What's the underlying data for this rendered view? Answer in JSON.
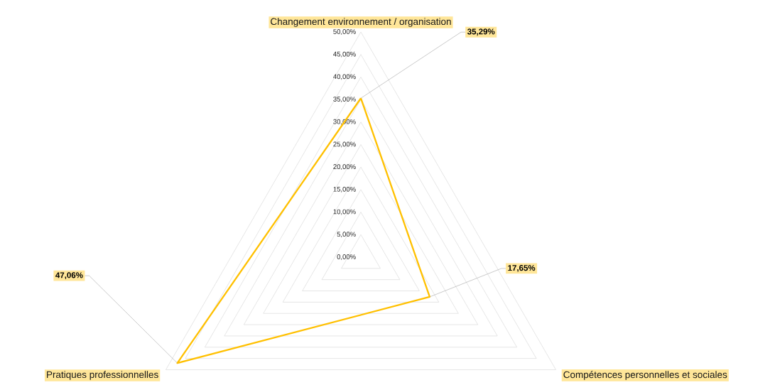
{
  "chart_data": {
    "type": "radar",
    "categories": [
      "Changement environnement / organisation",
      "Compétences personnelles et sociales",
      "Pratiques professionnelles"
    ],
    "series": [
      {
        "color": "#ffc000",
        "values": [
          35.29,
          17.65,
          47.06
        ],
        "value_labels": [
          "35,29%",
          "17,65%",
          "47,06%"
        ]
      }
    ],
    "ylim": [
      0,
      50
    ],
    "yticks": [
      {
        "value": 0,
        "label": "0,00%"
      },
      {
        "value": 5,
        "label": "5,00%"
      },
      {
        "value": 10,
        "label": "10,00%"
      },
      {
        "value": 15,
        "label": "15,00%"
      },
      {
        "value": 20,
        "label": "20,00%"
      },
      {
        "value": 25,
        "label": "25,00%"
      },
      {
        "value": 30,
        "label": "30,00%"
      },
      {
        "value": 35,
        "label": "35,00%"
      },
      {
        "value": 40,
        "label": "40,00%"
      },
      {
        "value": 45,
        "label": "45,00%"
      },
      {
        "value": 50,
        "label": "50,00%"
      }
    ],
    "grid": true,
    "marker": "none"
  }
}
